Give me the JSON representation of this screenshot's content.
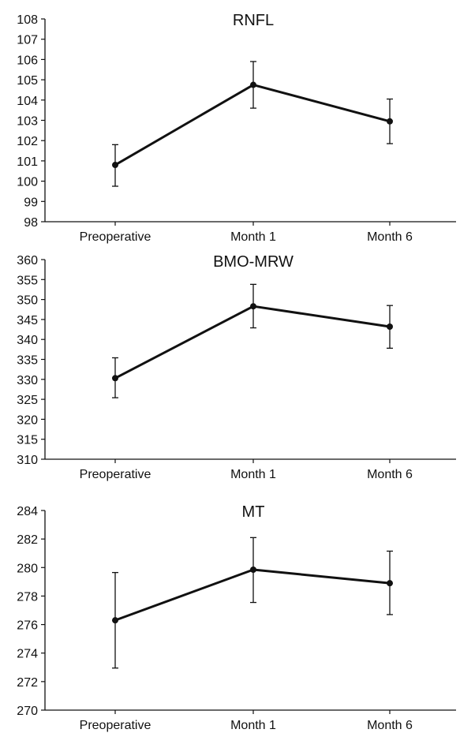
{
  "chart_data": [
    {
      "type": "line",
      "title": "RNFL",
      "xlabel": "",
      "ylabel": "",
      "categories": [
        "Preoperative",
        "Month 1",
        "Month 6"
      ],
      "values": [
        100.8,
        104.75,
        102.95
      ],
      "error_low": [
        99.75,
        103.6,
        101.85
      ],
      "error_high": [
        101.8,
        105.9,
        104.05
      ],
      "ylim": [
        98,
        108
      ],
      "yticks": [
        98,
        99,
        100,
        101,
        102,
        103,
        104,
        105,
        106,
        107,
        108
      ],
      "grid": false,
      "legend": "none",
      "line_color": "#111111"
    },
    {
      "type": "line",
      "title": "BMO-MRW",
      "xlabel": "",
      "ylabel": "",
      "categories": [
        "Preoperative",
        "Month 1",
        "Month 6"
      ],
      "values": [
        330.3,
        348.3,
        343.2
      ],
      "error_low": [
        325.4,
        342.9,
        337.8
      ],
      "error_high": [
        335.4,
        353.8,
        348.5
      ],
      "ylim": [
        310,
        360
      ],
      "yticks": [
        310,
        315,
        320,
        325,
        330,
        335,
        340,
        345,
        350,
        355,
        360
      ],
      "grid": false,
      "legend": "none",
      "line_color": "#111111"
    },
    {
      "type": "line",
      "title": "MT",
      "xlabel": "",
      "ylabel": "",
      "categories": [
        "Preoperative",
        "Month 1",
        "Month 6"
      ],
      "values": [
        276.3,
        279.85,
        278.9
      ],
      "error_low": [
        272.95,
        277.55,
        276.7
      ],
      "error_high": [
        279.65,
        282.1,
        281.15
      ],
      "ylim": [
        270,
        284
      ],
      "yticks": [
        270,
        272,
        274,
        276,
        278,
        280,
        282,
        284
      ],
      "grid": false,
      "legend": "none",
      "line_color": "#111111"
    }
  ]
}
